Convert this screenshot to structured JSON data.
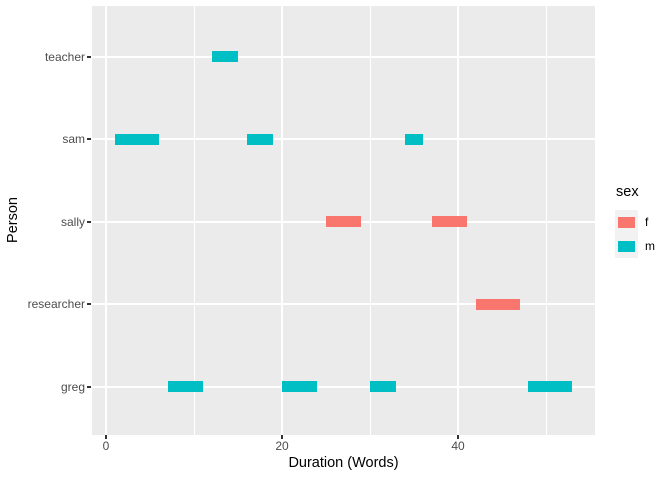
{
  "figure": {
    "background": "#FFFFFF",
    "panel_background": "#EBEBEB",
    "gridline_color": "#FFFFFF",
    "tick_mark_color": "#333333",
    "tick_label_color": "#4D4D4D"
  },
  "axes": {
    "x_title": "Duration (Words)",
    "y_title": "Person"
  },
  "legend": {
    "title": "sex",
    "key_background": "#F2F2F2",
    "entries": [
      {
        "label": "f",
        "color": "#F8766D"
      },
      {
        "label": "m",
        "color": "#00BFC4"
      }
    ]
  },
  "chart_data": {
    "type": "bar",
    "variant": "horizontal-segment-gantt",
    "title": "",
    "xlabel": "Duration (Words)",
    "ylabel": "Person",
    "categories": [
      "teacher",
      "sam",
      "sally",
      "researcher",
      "greg"
    ],
    "x_ticks": [
      0,
      20,
      40
    ],
    "x_minor_ticks": [
      10,
      30,
      50
    ],
    "xlim": [
      -1.6,
      55.6
    ],
    "grid": true,
    "legend_position": "right",
    "legend_title": "sex",
    "series": [
      {
        "name": "f",
        "color": "#F8766D",
        "segments": [
          {
            "person": "sally",
            "start": 25,
            "end": 29
          },
          {
            "person": "sally",
            "start": 37,
            "end": 41
          },
          {
            "person": "researcher",
            "start": 42,
            "end": 47
          }
        ]
      },
      {
        "name": "m",
        "color": "#00BFC4",
        "segments": [
          {
            "person": "teacher",
            "start": 12,
            "end": 15
          },
          {
            "person": "sam",
            "start": 1,
            "end": 6
          },
          {
            "person": "sam",
            "start": 16,
            "end": 19
          },
          {
            "person": "sam",
            "start": 34,
            "end": 36
          },
          {
            "person": "greg",
            "start": 7,
            "end": 11
          },
          {
            "person": "greg",
            "start": 20,
            "end": 24
          },
          {
            "person": "greg",
            "start": 30,
            "end": 33
          },
          {
            "person": "greg",
            "start": 48,
            "end": 53
          }
        ]
      }
    ]
  }
}
